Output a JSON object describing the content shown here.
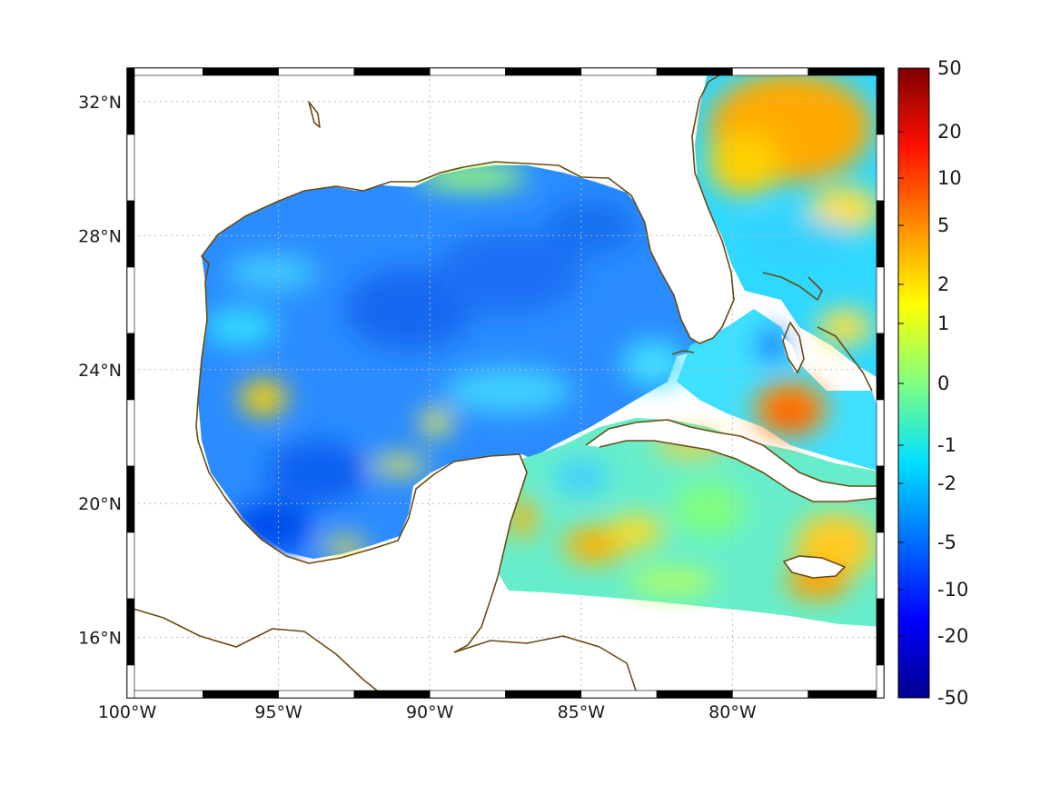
{
  "map": {
    "lon_range": [
      -100,
      -75
    ],
    "lat_range": [
      14.2,
      33
    ],
    "lon_ticks": [
      {
        "value": -100,
        "label": "100°W"
      },
      {
        "value": -95,
        "label": "95°W"
      },
      {
        "value": -90,
        "label": "90°W"
      },
      {
        "value": -85,
        "label": "85°W"
      },
      {
        "value": -80,
        "label": "80°W"
      }
    ],
    "lat_ticks": [
      {
        "value": 32,
        "label": "32°N"
      },
      {
        "value": 28,
        "label": "28°N"
      },
      {
        "value": 24,
        "label": "24°N"
      },
      {
        "value": 20,
        "label": "20°N"
      },
      {
        "value": 16,
        "label": "16°N"
      }
    ],
    "grid": "on",
    "frame": "alternating black-white ticked border"
  },
  "colorbar": {
    "tick_labels": [
      "50",
      "20",
      "10",
      "5",
      "2",
      "1",
      "0",
      "-1",
      "-2",
      "-5",
      "-10",
      "-20",
      "-50"
    ],
    "colormap": [
      "#00008f",
      "#0000ff",
      "#0080ff",
      "#00ffff",
      "#80ff80",
      "#ffff00",
      "#ff8000",
      "#ff0000",
      "#800000"
    ]
  },
  "colors": {
    "coastline": "#6b4a12",
    "field_background": "#2b8fff",
    "land": "#ffffff"
  }
}
